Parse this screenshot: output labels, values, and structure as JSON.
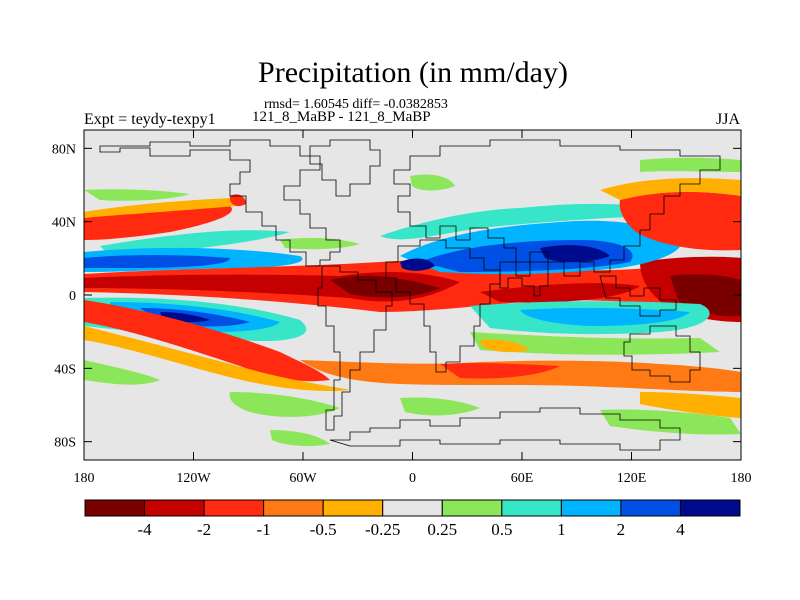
{
  "figure": {
    "title": "Precipitation (in mm/day)",
    "stats_line": "rmsd= 1.60545 diff= -0.0382853",
    "experiment_line": "121_8_MaBP - 121_8_MaBP",
    "left_string": "Expt = teydy-texpy1",
    "right_string": "JJA"
  },
  "map": {
    "projection": "cylindrical-equidistant",
    "lon_range": [
      -180,
      180
    ],
    "lat_range": [
      -90,
      90
    ],
    "lon_ticks": [
      {
        "value": -180,
        "label": "180"
      },
      {
        "value": -120,
        "label": "120W"
      },
      {
        "value": -60,
        "label": "60W"
      },
      {
        "value": 0,
        "label": "0"
      },
      {
        "value": 60,
        "label": "60E"
      },
      {
        "value": 120,
        "label": "120E"
      },
      {
        "value": 180,
        "label": "180"
      }
    ],
    "lat_ticks": [
      {
        "value": 80,
        "label": "80N"
      },
      {
        "value": 40,
        "label": "40N"
      },
      {
        "value": 0,
        "label": "0"
      },
      {
        "value": -40,
        "label": "40S"
      },
      {
        "value": -80,
        "label": "80S"
      }
    ],
    "background_color": "#e6e6e6",
    "coastline_color": "#000000"
  },
  "colorbar": {
    "colors": [
      "#7a0000",
      "#c40000",
      "#ff2a10",
      "#ff7a14",
      "#ffb000",
      "#e6e6e6",
      "#8ce65a",
      "#37e6c8",
      "#00b4ff",
      "#0050e6",
      "#000a8c"
    ],
    "labels": [
      "-4",
      "-2",
      "-1",
      "-0.5",
      "-0.25",
      "0.25",
      "0.5",
      "1",
      "2",
      "4"
    ]
  }
}
